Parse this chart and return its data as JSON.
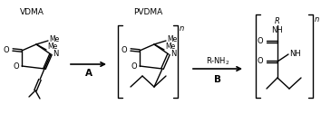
{
  "background_color": "#ffffff",
  "label_A": "A",
  "label_B": "B",
  "label_VDMA": "VDMA",
  "label_PVDMA": "PVDMA",
  "label_n": "n",
  "label_R": "R",
  "label_Me": "Me",
  "label_N": "N",
  "label_O": "O",
  "label_NH": "NH",
  "line_color": "#000000",
  "figsize": [
    3.54,
    1.26
  ],
  "dpi": 100
}
